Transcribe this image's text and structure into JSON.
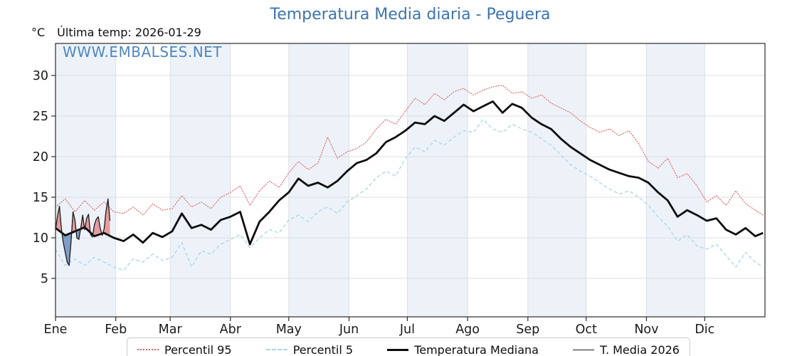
{
  "header": {
    "title": "Temperatura Media diaria - Peguera",
    "unit": "°C",
    "last_temp": "Última temp: 2026-01-29",
    "watermark": "WWW.EMBALSES.NET"
  },
  "colors": {
    "title": "#3c74ad",
    "watermark": "#4e86c2",
    "p95": "#e25d5d",
    "p5": "#aad4ea",
    "median": "#0d0d0d",
    "t2026": "#1a1a1a",
    "fill_above": "rgba(222,85,85,0.55)",
    "fill_below": "rgba(60,105,165,0.62)",
    "month_band": "#edf2f9",
    "grid": "#dcdfe3",
    "axis": "#2b2b2b"
  },
  "chart_data": {
    "type": "line",
    "title": "Temperatura Media diaria - Peguera",
    "x_axis": {
      "months": [
        "Ene",
        "Feb",
        "Mar",
        "Abr",
        "May",
        "Jun",
        "Jul",
        "Ago",
        "Sep",
        "Oct",
        "Nov",
        "Dic"
      ],
      "month_start_days": [
        0,
        31,
        59,
        90,
        120,
        151,
        181,
        212,
        243,
        273,
        304,
        334,
        365
      ],
      "shaded_months": [
        "Ene",
        "Mar",
        "May",
        "Jul",
        "Sep",
        "Nov"
      ]
    },
    "y_axis": {
      "unit": "°C",
      "ticks": [
        5,
        10,
        15,
        20,
        25,
        30
      ],
      "ylim": [
        0.3,
        33.9
      ],
      "grid": true
    },
    "legend_position": "bottom",
    "sample_days": [
      0,
      5,
      10,
      15,
      20,
      25,
      30,
      35,
      40,
      45,
      50,
      55,
      60,
      65,
      70,
      75,
      80,
      85,
      90,
      95,
      100,
      105,
      110,
      115,
      120,
      125,
      130,
      135,
      140,
      145,
      150,
      155,
      160,
      165,
      170,
      175,
      180,
      185,
      190,
      195,
      200,
      205,
      210,
      215,
      220,
      225,
      230,
      235,
      240,
      245,
      250,
      255,
      260,
      265,
      270,
      275,
      280,
      285,
      290,
      295,
      300,
      305,
      310,
      315,
      320,
      325,
      330,
      335,
      340,
      345,
      350,
      355,
      360,
      364
    ],
    "series": [
      {
        "name": "Percentil 95",
        "key": "p95",
        "style": "dotted",
        "values": [
          13.8,
          14.8,
          13.2,
          14.6,
          13.4,
          14.4,
          13.2,
          13.0,
          13.8,
          12.8,
          14.2,
          13.4,
          13.6,
          15.2,
          13.8,
          14.4,
          13.6,
          15.0,
          15.6,
          16.4,
          14.0,
          15.8,
          17.0,
          16.2,
          18.0,
          19.4,
          18.4,
          19.2,
          22.4,
          19.8,
          20.6,
          21.0,
          21.8,
          23.4,
          24.6,
          24.0,
          25.6,
          27.2,
          26.4,
          27.8,
          27.0,
          28.0,
          28.4,
          27.6,
          28.2,
          28.6,
          28.8,
          27.8,
          28.0,
          27.2,
          27.6,
          26.6,
          26.0,
          25.4,
          24.4,
          23.6,
          23.0,
          23.4,
          22.6,
          23.2,
          21.6,
          19.4,
          18.6,
          19.8,
          17.4,
          17.9,
          16.4,
          14.4,
          15.2,
          14.0,
          15.8,
          14.2,
          13.4,
          12.8
        ]
      },
      {
        "name": "Percentil 5",
        "key": "p5",
        "style": "dashed",
        "values": [
          8.6,
          6.6,
          7.4,
          6.6,
          7.6,
          7.0,
          6.4,
          6.0,
          7.4,
          7.0,
          8.0,
          7.2,
          7.6,
          9.4,
          6.4,
          8.4,
          8.0,
          9.2,
          9.8,
          10.4,
          8.8,
          10.0,
          11.0,
          10.6,
          12.2,
          12.8,
          12.0,
          13.2,
          13.8,
          13.0,
          14.4,
          15.2,
          16.0,
          17.4,
          18.2,
          17.6,
          19.8,
          21.2,
          20.6,
          22.0,
          21.4,
          22.4,
          23.2,
          23.0,
          24.6,
          23.4,
          23.0,
          24.0,
          23.4,
          23.0,
          22.2,
          21.4,
          20.2,
          19.0,
          18.2,
          17.6,
          16.8,
          16.0,
          15.4,
          15.8,
          15.0,
          14.0,
          12.6,
          11.4,
          9.6,
          10.4,
          9.0,
          8.6,
          9.2,
          7.8,
          6.4,
          8.2,
          7.0,
          6.4
        ]
      },
      {
        "name": "Temperatura Mediana",
        "key": "median",
        "style": "solid-thick",
        "values": [
          11.2,
          10.3,
          10.8,
          11.3,
          10.2,
          10.6,
          10.0,
          9.6,
          10.4,
          9.4,
          10.6,
          10.1,
          10.8,
          13.0,
          11.2,
          11.6,
          11.0,
          12.2,
          12.6,
          13.2,
          9.2,
          12.0,
          13.2,
          14.6,
          15.6,
          17.3,
          16.4,
          16.8,
          16.2,
          17.0,
          18.2,
          19.2,
          19.6,
          20.4,
          21.8,
          22.4,
          23.2,
          24.2,
          24.0,
          25.0,
          24.4,
          25.4,
          26.4,
          25.6,
          26.2,
          26.8,
          25.4,
          26.5,
          26.0,
          24.8,
          24.0,
          23.4,
          22.2,
          21.2,
          20.4,
          19.6,
          19.0,
          18.4,
          18.0,
          17.6,
          17.4,
          16.8,
          15.6,
          14.6,
          12.6,
          13.4,
          12.8,
          12.1,
          12.4,
          11.0,
          10.4,
          11.2,
          10.2,
          10.6
        ]
      },
      {
        "name": "T. Media 2026",
        "key": "t2026",
        "style": "solid-thin",
        "days": [
          0,
          1,
          2,
          3,
          4,
          5,
          6,
          7,
          8,
          9,
          10,
          11,
          12,
          13,
          14,
          15,
          16,
          17,
          18,
          19,
          20,
          21,
          22,
          23,
          24,
          25,
          26,
          27,
          28
        ],
        "values": [
          11.0,
          12.6,
          13.9,
          11.2,
          9.4,
          8.2,
          7.0,
          6.6,
          9.6,
          13.2,
          12.2,
          10.0,
          9.8,
          11.2,
          12.8,
          11.0,
          12.4,
          12.9,
          10.4,
          10.1,
          11.6,
          12.3,
          12.6,
          11.2,
          10.3,
          11.1,
          13.3,
          14.8,
          12.1
        ],
        "fill_vs": "Temperatura Mediana"
      }
    ]
  },
  "legend": {
    "items": [
      {
        "label": "Percentil 95",
        "key": "p95"
      },
      {
        "label": "Percentil 5",
        "key": "p5"
      },
      {
        "label": "Temperatura Mediana",
        "key": "median"
      },
      {
        "label": "T. Media 2026",
        "key": "t2026"
      }
    ]
  }
}
